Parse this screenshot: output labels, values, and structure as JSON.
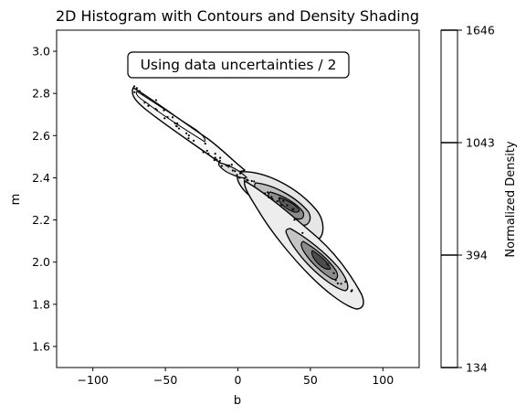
{
  "chart_data": {
    "type": "heatmap",
    "title": "2D Histogram with Contours and Density Shading",
    "xlabel": "b",
    "ylabel": "m",
    "xlim": [
      -125,
      125
    ],
    "ylim": [
      1.5,
      3.1
    ],
    "x_ticks": [
      -100,
      -50,
      0,
      50,
      100
    ],
    "y_ticks": [
      1.6,
      1.8,
      2.0,
      2.2,
      2.4,
      2.6,
      2.8,
      3.0
    ],
    "annotation": "Using data uncertainties / 2",
    "colorbar": {
      "label": "Normalized Density",
      "ticks": [
        134,
        394,
        1043,
        1646
      ]
    },
    "grid": false,
    "density_ridge": [
      {
        "b": -75,
        "m": 2.84
      },
      {
        "b": -60,
        "m": 2.76
      },
      {
        "b": -40,
        "m": 2.64
      },
      {
        "b": -20,
        "m": 2.52
      },
      {
        "b": 0,
        "m": 2.42
      },
      {
        "b": 20,
        "m": 2.32
      },
      {
        "b": 38,
        "m": 2.25
      },
      {
        "b": 60,
        "m": 2.0
      },
      {
        "b": 80,
        "m": 1.84
      }
    ],
    "density_peaks": [
      {
        "b": 38,
        "m": 2.25
      },
      {
        "b": 62,
        "m": 1.99
      }
    ]
  }
}
